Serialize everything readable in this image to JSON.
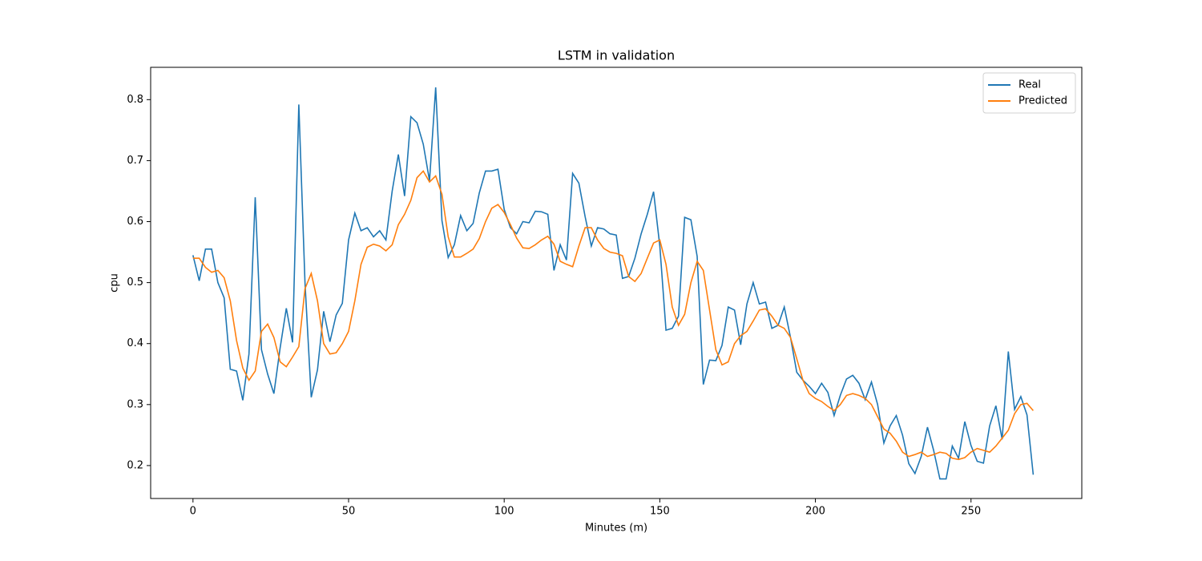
{
  "chart_data": {
    "type": "line",
    "title": "LSTM in validation",
    "xlabel": "Minutes (m)",
    "ylabel": "cpu",
    "x": [
      0,
      2,
      4,
      6,
      8,
      10,
      12,
      14,
      16,
      18,
      20,
      22,
      24,
      26,
      28,
      30,
      32,
      34,
      36,
      38,
      40,
      42,
      44,
      46,
      48,
      50,
      52,
      54,
      56,
      58,
      60,
      62,
      64,
      66,
      68,
      70,
      72,
      74,
      76,
      78,
      80,
      82,
      84,
      86,
      88,
      90,
      92,
      94,
      96,
      98,
      100,
      102,
      104,
      106,
      108,
      110,
      112,
      114,
      116,
      118,
      120,
      122,
      124,
      126,
      128,
      130,
      132,
      134,
      136,
      138,
      140,
      142,
      144,
      146,
      148,
      150,
      152,
      154,
      156,
      158,
      160,
      162,
      164,
      166,
      168,
      170,
      172,
      174,
      176,
      178,
      180,
      182,
      184,
      186,
      188,
      190,
      192,
      194,
      196,
      198,
      200,
      202,
      204,
      206,
      208,
      210,
      212,
      214,
      216,
      218,
      220,
      222,
      224,
      226,
      228,
      230,
      232,
      234,
      236,
      238,
      240,
      242,
      244,
      246,
      248,
      250,
      252,
      254,
      256,
      258,
      260,
      262,
      264,
      266,
      268,
      270
    ],
    "series": [
      {
        "name": "Real",
        "color": "#1f77b4",
        "values": [
          0.545,
          0.503,
          0.555,
          0.555,
          0.5,
          0.475,
          0.358,
          0.355,
          0.307,
          0.383,
          0.64,
          0.39,
          0.35,
          0.318,
          0.393,
          0.458,
          0.402,
          0.792,
          0.5,
          0.312,
          0.357,
          0.453,
          0.403,
          0.447,
          0.466,
          0.57,
          0.614,
          0.585,
          0.59,
          0.575,
          0.585,
          0.57,
          0.65,
          0.71,
          0.642,
          0.772,
          0.762,
          0.727,
          0.667,
          0.82,
          0.602,
          0.541,
          0.562,
          0.61,
          0.585,
          0.597,
          0.647,
          0.683,
          0.683,
          0.686,
          0.62,
          0.59,
          0.58,
          0.6,
          0.598,
          0.617,
          0.616,
          0.612,
          0.52,
          0.562,
          0.537,
          0.679,
          0.663,
          0.608,
          0.56,
          0.59,
          0.588,
          0.58,
          0.578,
          0.507,
          0.51,
          0.54,
          0.58,
          0.612,
          0.649,
          0.56,
          0.422,
          0.425,
          0.445,
          0.607,
          0.603,
          0.543,
          0.333,
          0.373,
          0.372,
          0.397,
          0.46,
          0.455,
          0.398,
          0.465,
          0.5,
          0.465,
          0.468,
          0.425,
          0.43,
          0.46,
          0.41,
          0.353,
          0.34,
          0.33,
          0.318,
          0.335,
          0.32,
          0.282,
          0.315,
          0.342,
          0.348,
          0.335,
          0.308,
          0.337,
          0.3,
          0.237,
          0.265,
          0.282,
          0.25,
          0.203,
          0.187,
          0.215,
          0.263,
          0.225,
          0.178,
          0.178,
          0.232,
          0.212,
          0.272,
          0.233,
          0.207,
          0.204,
          0.265,
          0.298,
          0.243,
          0.387,
          0.292,
          0.313,
          0.283,
          0.185
        ]
      },
      {
        "name": "Predicted",
        "color": "#ff7f0e",
        "values": [
          0.54,
          0.54,
          0.525,
          0.517,
          0.52,
          0.508,
          0.47,
          0.405,
          0.36,
          0.34,
          0.355,
          0.42,
          0.432,
          0.41,
          0.37,
          0.362,
          0.378,
          0.395,
          0.49,
          0.515,
          0.47,
          0.4,
          0.383,
          0.385,
          0.4,
          0.42,
          0.47,
          0.53,
          0.558,
          0.563,
          0.56,
          0.552,
          0.562,
          0.595,
          0.612,
          0.635,
          0.672,
          0.683,
          0.665,
          0.675,
          0.645,
          0.575,
          0.542,
          0.542,
          0.548,
          0.555,
          0.572,
          0.6,
          0.622,
          0.628,
          0.615,
          0.595,
          0.573,
          0.557,
          0.556,
          0.562,
          0.57,
          0.576,
          0.563,
          0.535,
          0.53,
          0.526,
          0.56,
          0.59,
          0.59,
          0.57,
          0.556,
          0.55,
          0.548,
          0.544,
          0.51,
          0.502,
          0.515,
          0.54,
          0.565,
          0.57,
          0.53,
          0.46,
          0.43,
          0.448,
          0.5,
          0.535,
          0.52,
          0.455,
          0.39,
          0.365,
          0.37,
          0.4,
          0.413,
          0.42,
          0.437,
          0.455,
          0.457,
          0.445,
          0.43,
          0.425,
          0.41,
          0.375,
          0.34,
          0.318,
          0.31,
          0.305,
          0.297,
          0.29,
          0.3,
          0.315,
          0.318,
          0.315,
          0.31,
          0.3,
          0.28,
          0.26,
          0.253,
          0.24,
          0.222,
          0.215,
          0.218,
          0.222,
          0.215,
          0.218,
          0.222,
          0.22,
          0.212,
          0.21,
          0.213,
          0.222,
          0.228,
          0.225,
          0.222,
          0.232,
          0.245,
          0.258,
          0.285,
          0.3,
          0.302,
          0.29
        ]
      }
    ],
    "xlim": [
      -13.6,
      285.6
    ],
    "ylim": [
      0.146,
      0.853
    ],
    "xticks": [
      0,
      50,
      100,
      150,
      200,
      250
    ],
    "yticks": [
      0.2,
      0.3,
      0.4,
      0.5,
      0.6,
      0.7,
      0.8
    ],
    "legend": "upper right"
  }
}
